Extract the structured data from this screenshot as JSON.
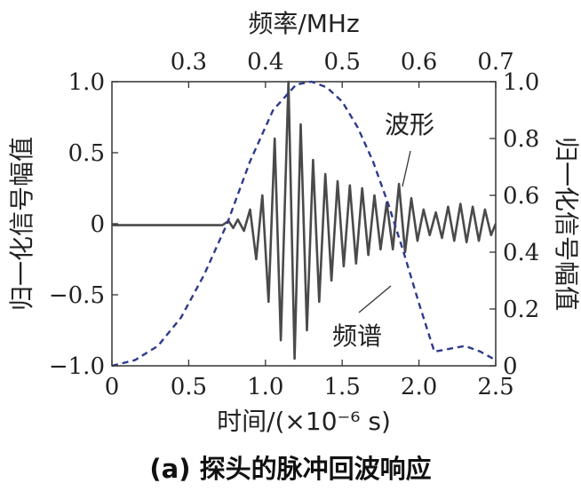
{
  "caption": "(a) 探头的脉冲回波响应",
  "chart_data": {
    "type": "line",
    "top_xlabel": "频率/MHz",
    "top_xlim": [
      0.2,
      0.7
    ],
    "top_xticks": [
      "0.3",
      "0.4",
      "0.5",
      "0.6",
      "0.7"
    ],
    "top_xtick_values": [
      0.3,
      0.4,
      0.5,
      0.6,
      0.7
    ],
    "bottom_xlabel": "时间/(×10⁻⁶ s)",
    "bottom_xlim": [
      0,
      2.5
    ],
    "bottom_xticks": [
      "0",
      "0.5",
      "1.0",
      "1.5",
      "2.0",
      "2.5"
    ],
    "bottom_xtick_values": [
      0,
      0.5,
      1.0,
      1.5,
      2.0,
      2.5
    ],
    "left_ylabel": "归一化信号幅值",
    "left_ylim": [
      -1.0,
      1.0
    ],
    "left_yticks": [
      "1.0",
      "0.5",
      "0",
      "−0.5",
      "−1.0"
    ],
    "left_ytick_values": [
      1.0,
      0.5,
      0,
      -0.5,
      -1.0
    ],
    "right_ylabel": "归一化信号幅值",
    "right_ylim": [
      0,
      1.0
    ],
    "right_yticks": [
      "1.0",
      "0.8",
      "0.6",
      "0.4",
      "0.2",
      "0"
    ],
    "right_ytick_values": [
      1.0,
      0.8,
      0.6,
      0.4,
      0.2,
      0
    ],
    "grid": false,
    "series": [
      {
        "name": "波形",
        "axes": "bottom-left",
        "style": "solid",
        "color": "#4a4a4a",
        "x": [
          0,
          0.5,
          0.72,
          0.76,
          0.79,
          0.82,
          0.86,
          0.9,
          0.94,
          0.98,
          1.02,
          1.06,
          1.1,
          1.15,
          1.19,
          1.23,
          1.27,
          1.31,
          1.35,
          1.39,
          1.43,
          1.47,
          1.51,
          1.55,
          1.59,
          1.63,
          1.67,
          1.71,
          1.75,
          1.79,
          1.83,
          1.87,
          1.91,
          1.95,
          1.99,
          2.03,
          2.07,
          2.11,
          2.15,
          2.19,
          2.23,
          2.27,
          2.31,
          2.35,
          2.39,
          2.43,
          2.47,
          2.5
        ],
        "y": [
          -0.01,
          -0.01,
          -0.01,
          0.02,
          -0.03,
          0.03,
          -0.05,
          0.1,
          -0.25,
          0.2,
          -0.55,
          0.6,
          -0.82,
          1.0,
          -0.95,
          0.7,
          -0.75,
          0.45,
          -0.55,
          0.35,
          -0.4,
          0.3,
          -0.3,
          0.27,
          -0.28,
          0.25,
          -0.22,
          0.2,
          -0.18,
          0.15,
          -0.18,
          0.28,
          -0.2,
          0.18,
          -0.12,
          0.1,
          -0.08,
          0.08,
          -0.1,
          0.12,
          -0.12,
          0.14,
          -0.13,
          0.12,
          -0.12,
          0.1,
          -0.08,
          0.0
        ]
      },
      {
        "name": "频谱",
        "axes": "top-right",
        "style": "dashed",
        "color": "#2e3a8c",
        "x": [
          0.2,
          0.23,
          0.26,
          0.29,
          0.32,
          0.35,
          0.38,
          0.41,
          0.44,
          0.46,
          0.48,
          0.5,
          0.52,
          0.54,
          0.56,
          0.58,
          0.6,
          0.62,
          0.64,
          0.66,
          0.68,
          0.7
        ],
        "y": [
          0.0,
          0.02,
          0.07,
          0.17,
          0.32,
          0.5,
          0.72,
          0.9,
          0.99,
          1.0,
          0.98,
          0.93,
          0.84,
          0.72,
          0.57,
          0.4,
          0.22,
          0.05,
          0.06,
          0.07,
          0.05,
          0.02
        ]
      }
    ],
    "annotations": [
      "波形",
      "频谱"
    ]
  }
}
